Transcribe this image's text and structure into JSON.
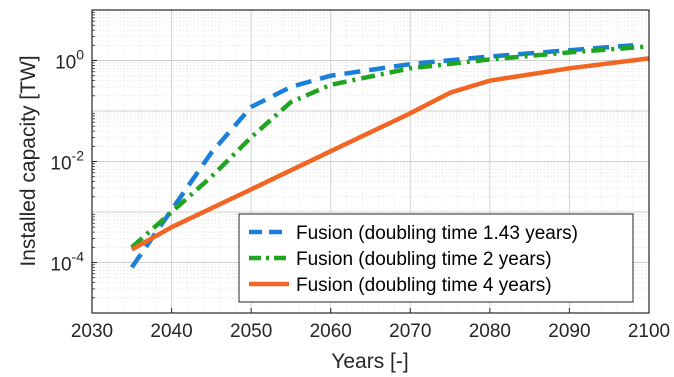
{
  "chart_data": {
    "type": "line",
    "xlabel": "Years [-]",
    "ylabel": "Installed capacity [TW]",
    "xlim": [
      2030,
      2100
    ],
    "ylim": [
      1e-05,
      10
    ],
    "yscale": "log",
    "grid": true,
    "minor_grid": true,
    "legend_position": "bottom-right",
    "x_ticks": [
      2030,
      2040,
      2050,
      2060,
      2070,
      2080,
      2090,
      2100
    ],
    "x_tick_labels": [
      "2030",
      "2040",
      "2050",
      "2060",
      "2070",
      "2080",
      "2090",
      "2100"
    ],
    "y_ticks": [
      {
        "value": 0.0001,
        "base": "10",
        "exp": "-4"
      },
      {
        "value": 0.01,
        "base": "10",
        "exp": "-2"
      },
      {
        "value": 1,
        "base": "10",
        "exp": "0"
      }
    ],
    "series": [
      {
        "name": "Fusion (doubling time 1.43 years)",
        "color": "#1a7fd9",
        "dash": "dashed",
        "points": [
          [
            2035,
            8e-05
          ],
          [
            2040,
            0.0011
          ],
          [
            2045,
            0.015
          ],
          [
            2050,
            0.12
          ],
          [
            2055,
            0.3
          ],
          [
            2060,
            0.5
          ],
          [
            2070,
            0.85
          ],
          [
            2080,
            1.2
          ],
          [
            2090,
            1.6
          ],
          [
            2098,
            2.0
          ]
        ]
      },
      {
        "name": "Fusion (doubling time 2 years)",
        "color": "#1fa51f",
        "dash": "dashdot",
        "points": [
          [
            2035,
            0.0002
          ],
          [
            2040,
            0.001
          ],
          [
            2045,
            0.005
          ],
          [
            2050,
            0.03
          ],
          [
            2055,
            0.15
          ],
          [
            2060,
            0.33
          ],
          [
            2070,
            0.7
          ],
          [
            2080,
            1.05
          ],
          [
            2090,
            1.45
          ],
          [
            2100,
            1.9
          ]
        ]
      },
      {
        "name": "Fusion (doubling time 4 years)",
        "color": "#f26522",
        "dash": "solid",
        "points": [
          [
            2035,
            0.00018
          ],
          [
            2040,
            0.0005
          ],
          [
            2050,
            0.0028
          ],
          [
            2060,
            0.016
          ],
          [
            2070,
            0.09
          ],
          [
            2075,
            0.23
          ],
          [
            2080,
            0.4
          ],
          [
            2090,
            0.7
          ],
          [
            2100,
            1.1
          ]
        ]
      }
    ]
  }
}
